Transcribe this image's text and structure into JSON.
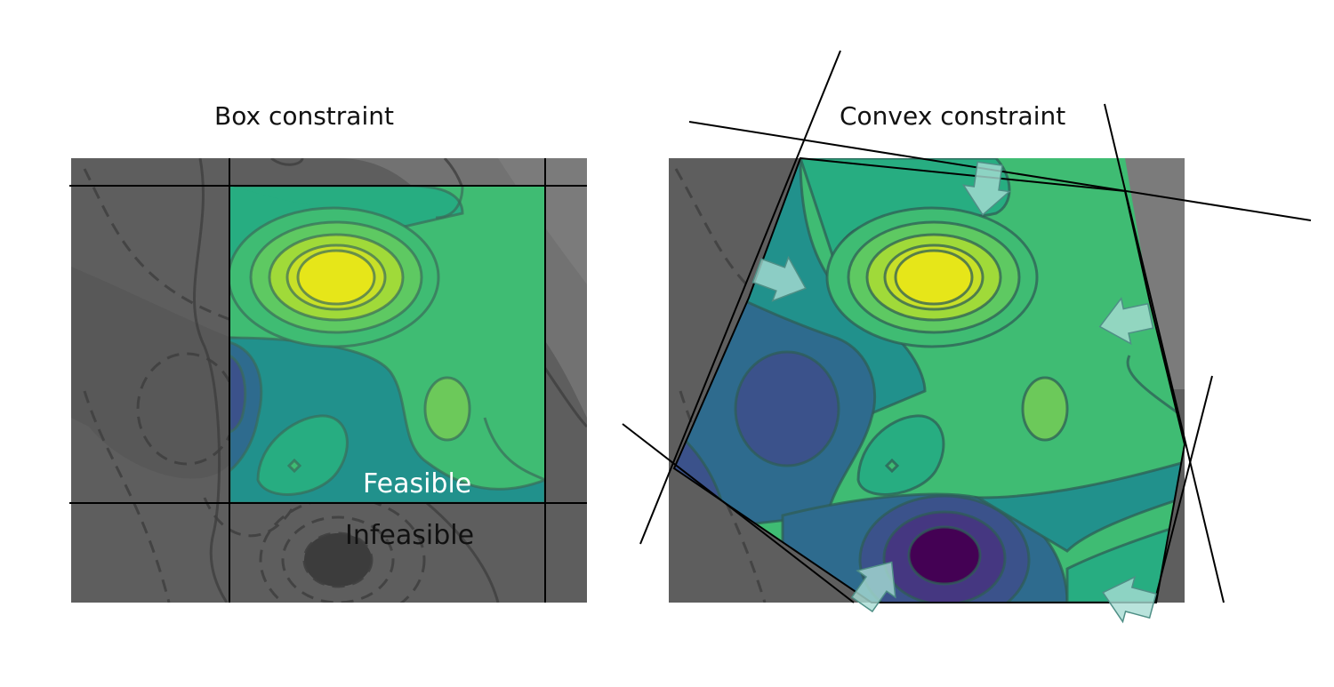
{
  "panels": [
    {
      "title": "Box constraint",
      "labels": {
        "feasible": "Feasible",
        "infeasible": "Infeasible"
      }
    },
    {
      "title": "Convex constraint"
    }
  ],
  "colors": {
    "infeasible_dark": "#5e5e5e",
    "infeasible_light": "#7b7b7b",
    "contour_line": "#3f3f3f",
    "constraint_line": "#000000",
    "arrow_fill": "#a8dcd3",
    "palette_viridis": [
      "#440154",
      "#3b528b",
      "#2e6b8e",
      "#21918c",
      "#27ad81",
      "#3fbc73",
      "#5ec962",
      "#a0da39",
      "#fde725"
    ]
  },
  "icons": [
    "arrow-icon"
  ]
}
